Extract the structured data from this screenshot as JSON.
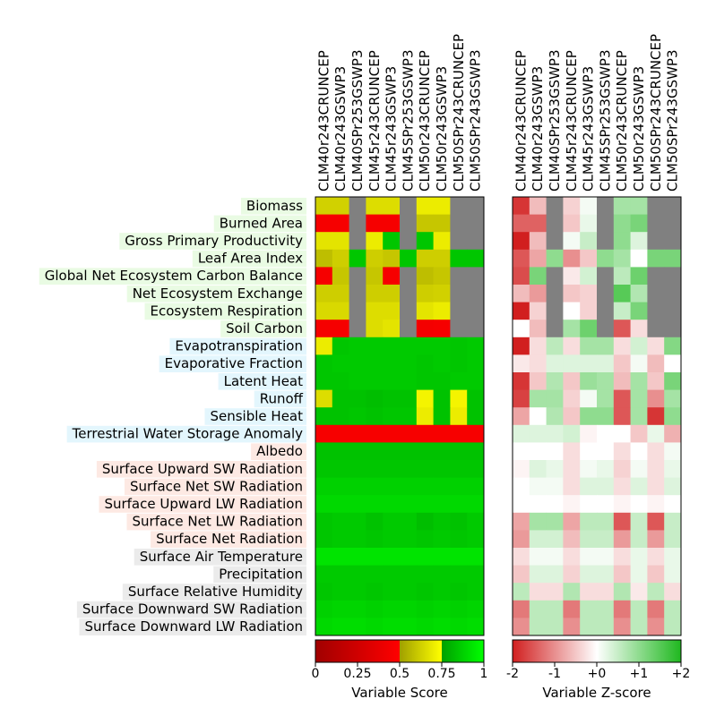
{
  "chart_data": {
    "type": "heatmap",
    "models": [
      "CLM40r243CRUNCEP",
      "CLM40r243GSWP3",
      "CLM40SPr253GSWP3",
      "CLM45r243CRUNCEP",
      "CLM45r243GSWP3",
      "CLM45SPr253GSWP3",
      "CLM50r243CRUNCEP",
      "CLM50r243GSWP3",
      "CLM50SPr243CRUNCEP",
      "CLM50SPr243GSWP3"
    ],
    "variables": [
      {
        "name": "Biomass",
        "group": "ecosystem"
      },
      {
        "name": "Burned Area",
        "group": "ecosystem"
      },
      {
        "name": "Gross Primary Productivity",
        "group": "ecosystem"
      },
      {
        "name": "Leaf Area Index",
        "group": "ecosystem"
      },
      {
        "name": "Global Net Ecosystem Carbon Balance",
        "group": "ecosystem"
      },
      {
        "name": "Net Ecosystem Exchange",
        "group": "ecosystem"
      },
      {
        "name": "Ecosystem Respiration",
        "group": "ecosystem"
      },
      {
        "name": "Soil Carbon",
        "group": "ecosystem"
      },
      {
        "name": "Evapotranspiration",
        "group": "hydrology"
      },
      {
        "name": "Evaporative Fraction",
        "group": "hydrology"
      },
      {
        "name": "Latent Heat",
        "group": "hydrology"
      },
      {
        "name": "Runoff",
        "group": "hydrology"
      },
      {
        "name": "Sensible Heat",
        "group": "hydrology"
      },
      {
        "name": "Terrestrial Water Storage Anomaly",
        "group": "hydrology"
      },
      {
        "name": "Albedo",
        "group": "radiation"
      },
      {
        "name": "Surface Upward SW Radiation",
        "group": "radiation"
      },
      {
        "name": "Surface Net SW Radiation",
        "group": "radiation"
      },
      {
        "name": "Surface Upward LW Radiation",
        "group": "radiation"
      },
      {
        "name": "Surface Net LW Radiation",
        "group": "radiation"
      },
      {
        "name": "Surface Net Radiation",
        "group": "radiation"
      },
      {
        "name": "Surface Air Temperature",
        "group": "forcing"
      },
      {
        "name": "Precipitation",
        "group": "forcing"
      },
      {
        "name": "Surface Relative Humidity",
        "group": "forcing"
      },
      {
        "name": "Surface Downward SW Radiation",
        "group": "forcing"
      },
      {
        "name": "Surface Downward LW Radiation",
        "group": "forcing"
      }
    ],
    "group_colors": {
      "ecosystem": "#e9fbe3",
      "hydrology": "#e3f6fd",
      "radiation": "#fde9e3",
      "forcing": "#ebebeb"
    },
    "missing_color": "#808080",
    "scores": [
      [
        0.63,
        0.63,
        null,
        0.66,
        0.66,
        null,
        0.7,
        0.7,
        null,
        null
      ],
      [
        0.45,
        0.45,
        null,
        0.45,
        0.45,
        null,
        0.6,
        0.6,
        null,
        null
      ],
      [
        0.68,
        0.68,
        null,
        0.7,
        0.85,
        null,
        0.85,
        0.7,
        null,
        null
      ],
      [
        0.58,
        0.62,
        0.85,
        0.62,
        0.6,
        0.85,
        0.62,
        0.62,
        0.85,
        0.85
      ],
      [
        0.45,
        0.6,
        null,
        0.6,
        0.45,
        null,
        0.58,
        0.6,
        null,
        null
      ],
      [
        0.62,
        0.62,
        null,
        0.62,
        0.62,
        null,
        0.62,
        0.63,
        null,
        null
      ],
      [
        0.65,
        0.65,
        null,
        0.66,
        0.66,
        null,
        0.68,
        0.7,
        null,
        null
      ],
      [
        0.45,
        0.45,
        null,
        0.66,
        0.68,
        null,
        0.44,
        0.45,
        null,
        null
      ],
      [
        0.7,
        0.85,
        0.86,
        0.86,
        0.86,
        0.86,
        0.86,
        0.86,
        0.85,
        0.86
      ],
      [
        0.85,
        0.86,
        0.86,
        0.86,
        0.86,
        0.86,
        0.85,
        0.86,
        0.85,
        0.86
      ],
      [
        0.85,
        0.85,
        0.86,
        0.86,
        0.86,
        0.86,
        0.85,
        0.85,
        0.86,
        0.86
      ],
      [
        0.66,
        0.84,
        0.84,
        0.83,
        0.84,
        0.84,
        0.72,
        0.84,
        0.72,
        0.84
      ],
      [
        0.84,
        0.84,
        0.85,
        0.84,
        0.85,
        0.85,
        0.7,
        0.84,
        0.7,
        0.84
      ],
      [
        0.46,
        0.46,
        0.46,
        0.46,
        0.46,
        0.46,
        0.46,
        0.46,
        0.46,
        0.46
      ],
      [
        0.84,
        0.84,
        0.84,
        0.84,
        0.84,
        0.84,
        0.84,
        0.84,
        0.84,
        0.84
      ],
      [
        0.85,
        0.85,
        0.85,
        0.85,
        0.85,
        0.85,
        0.85,
        0.85,
        0.85,
        0.85
      ],
      [
        0.88,
        0.88,
        0.88,
        0.88,
        0.88,
        0.88,
        0.88,
        0.88,
        0.88,
        0.88
      ],
      [
        0.9,
        0.9,
        0.9,
        0.9,
        0.9,
        0.9,
        0.9,
        0.9,
        0.9,
        0.9
      ],
      [
        0.85,
        0.86,
        0.86,
        0.84,
        0.86,
        0.86,
        0.83,
        0.85,
        0.84,
        0.86
      ],
      [
        0.85,
        0.86,
        0.86,
        0.85,
        0.86,
        0.86,
        0.85,
        0.86,
        0.85,
        0.86
      ],
      [
        0.93,
        0.93,
        0.93,
        0.93,
        0.93,
        0.93,
        0.93,
        0.93,
        0.93,
        0.93
      ],
      [
        0.86,
        0.86,
        0.86,
        0.86,
        0.86,
        0.86,
        0.86,
        0.86,
        0.86,
        0.86
      ],
      [
        0.85,
        0.86,
        0.86,
        0.85,
        0.86,
        0.86,
        0.85,
        0.86,
        0.85,
        0.86
      ],
      [
        0.88,
        0.89,
        0.89,
        0.88,
        0.89,
        0.89,
        0.88,
        0.89,
        0.88,
        0.89
      ],
      [
        0.9,
        0.91,
        0.91,
        0.9,
        0.91,
        0.91,
        0.9,
        0.91,
        0.9,
        0.91
      ]
    ],
    "zscores": [
      [
        -1.8,
        -0.6,
        null,
        -0.4,
        0.1,
        null,
        0.8,
        0.8,
        null,
        null
      ],
      [
        -1.4,
        -1.4,
        null,
        -0.5,
        0.2,
        null,
        1.0,
        1.2,
        null,
        null
      ],
      [
        -2.0,
        -0.6,
        null,
        0.1,
        0.5,
        null,
        1.0,
        0.3,
        null,
        null
      ],
      [
        -1.5,
        -0.8,
        1.0,
        -1.0,
        -0.5,
        1.0,
        0.8,
        0.0,
        1.2,
        1.2
      ],
      [
        -1.6,
        1.2,
        null,
        -0.2,
        0.4,
        null,
        0.6,
        1.3,
        null,
        null
      ],
      [
        -0.6,
        -0.9,
        null,
        -0.5,
        -0.4,
        null,
        1.5,
        0.7,
        null,
        null
      ],
      [
        -2.0,
        -0.4,
        null,
        0.0,
        -0.4,
        null,
        0.5,
        1.2,
        null,
        null
      ],
      [
        0.0,
        -0.6,
        null,
        0.8,
        1.3,
        null,
        -1.5,
        -0.3,
        null,
        null
      ],
      [
        -2.0,
        -0.3,
        0.6,
        -0.3,
        0.8,
        0.8,
        -0.3,
        0.4,
        -0.3,
        1.1
      ],
      [
        -0.2,
        -0.3,
        0.3,
        0.3,
        0.3,
        0.3,
        -0.5,
        0.1,
        -0.6,
        0.0
      ],
      [
        -1.8,
        -0.5,
        0.7,
        -0.5,
        0.9,
        0.8,
        -0.6,
        0.8,
        -0.5,
        1.2
      ],
      [
        -1.7,
        0.8,
        0.8,
        -0.4,
        0.1,
        0.8,
        -1.5,
        0.8,
        -1.0,
        0.8
      ],
      [
        -0.8,
        0.0,
        0.7,
        -0.5,
        1.0,
        1.0,
        -1.5,
        0.8,
        -1.8,
        1.0
      ],
      [
        0.3,
        0.3,
        0.3,
        0.4,
        -0.1,
        0.0,
        0.0,
        -0.5,
        0.2,
        -0.7
      ],
      [
        0.0,
        0.0,
        0.0,
        -0.3,
        0.0,
        0.0,
        -0.3,
        0.0,
        -0.3,
        0.1
      ],
      [
        -0.1,
        0.3,
        0.2,
        -0.3,
        0.1,
        0.2,
        -0.4,
        0.1,
        -0.3,
        0.2
      ],
      [
        0.0,
        0.1,
        0.1,
        -0.3,
        0.3,
        0.3,
        -0.3,
        0.3,
        -0.3,
        0.3
      ],
      [
        0.0,
        0.0,
        0.0,
        -0.1,
        0.0,
        0.0,
        -0.1,
        0.0,
        -0.1,
        0.0
      ],
      [
        -0.8,
        0.8,
        0.8,
        -0.8,
        0.6,
        0.6,
        -1.5,
        0.5,
        -1.5,
        0.5
      ],
      [
        -0.9,
        0.4,
        0.4,
        -0.6,
        0.5,
        0.5,
        -0.9,
        0.5,
        -0.9,
        0.5
      ],
      [
        -0.3,
        0.1,
        0.1,
        -0.3,
        0.1,
        0.1,
        -0.3,
        0.2,
        -0.3,
        0.2
      ],
      [
        -0.5,
        0.3,
        0.3,
        -0.4,
        0.3,
        0.3,
        -0.5,
        0.2,
        -0.5,
        0.2
      ],
      [
        0.6,
        -0.3,
        -0.3,
        0.7,
        -0.3,
        -0.3,
        0.7,
        -0.2,
        0.6,
        -0.3
      ],
      [
        -1.2,
        0.6,
        0.6,
        -1.2,
        0.6,
        0.6,
        -1.2,
        0.6,
        -1.2,
        0.6
      ],
      [
        -1.0,
        0.6,
        0.6,
        -1.0,
        0.6,
        0.6,
        -1.0,
        0.6,
        -1.0,
        0.6
      ]
    ],
    "score_colorbar": {
      "label": "Variable Score",
      "ticks": [
        "0",
        "0.25",
        "0.5",
        "0.75",
        "1"
      ],
      "range": [
        0,
        1
      ]
    },
    "zscore_colorbar": {
      "label": "Variable Z-score",
      "ticks": [
        "-2",
        "-1",
        "+0",
        "+1",
        "+2"
      ],
      "range": [
        -2,
        2
      ]
    }
  }
}
